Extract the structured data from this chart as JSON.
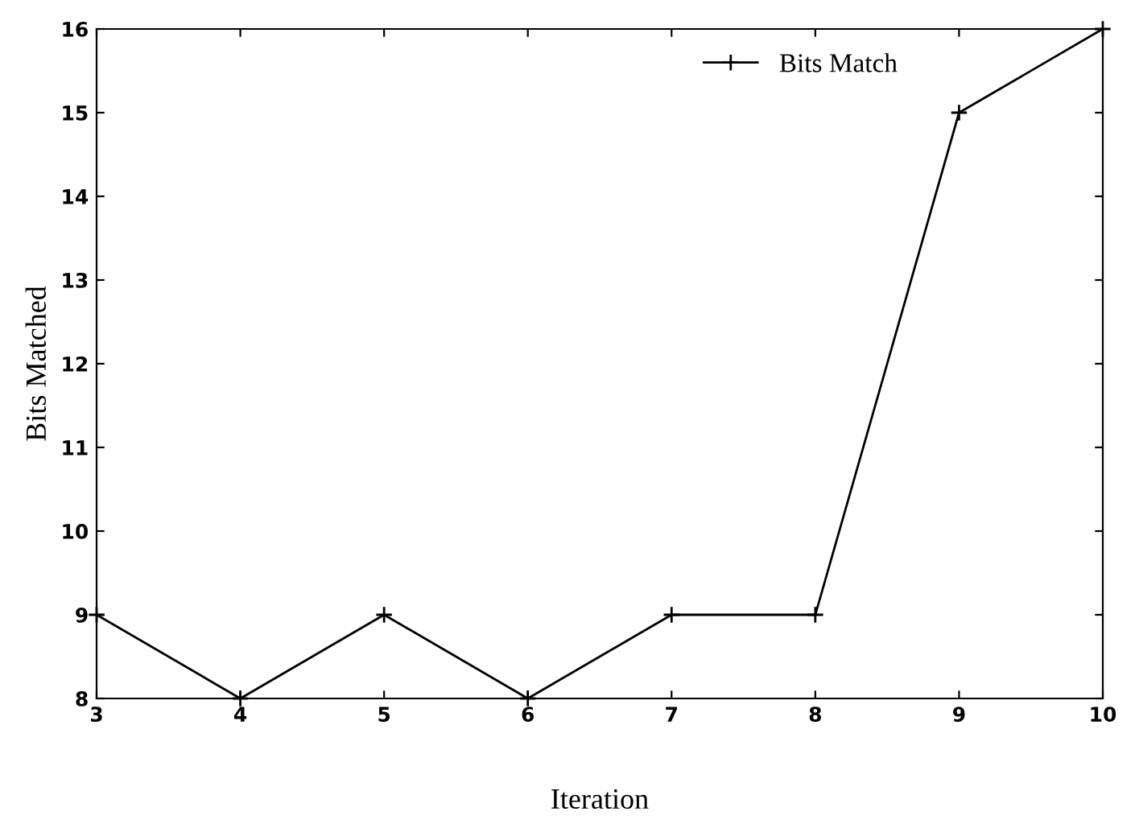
{
  "chart_data": {
    "type": "line",
    "xlabel": "Iteration",
    "ylabel": "Bits Matched",
    "x": [
      3,
      4,
      5,
      6,
      7,
      8,
      9,
      10
    ],
    "series": [
      {
        "name": "Bits Match",
        "color": "#000000",
        "values": [
          9,
          8,
          9,
          8,
          9,
          9,
          15,
          16
        ]
      }
    ],
    "xlim": [
      3,
      10
    ],
    "xticks": [
      3,
      4,
      5,
      6,
      7,
      8,
      9,
      10
    ],
    "ylim": [
      8,
      16
    ],
    "yticks": [
      8,
      9,
      10,
      11,
      12,
      13,
      14,
      15,
      16
    ],
    "marker": "cross",
    "line_style": "solid",
    "grid": false,
    "legend": "top right"
  }
}
